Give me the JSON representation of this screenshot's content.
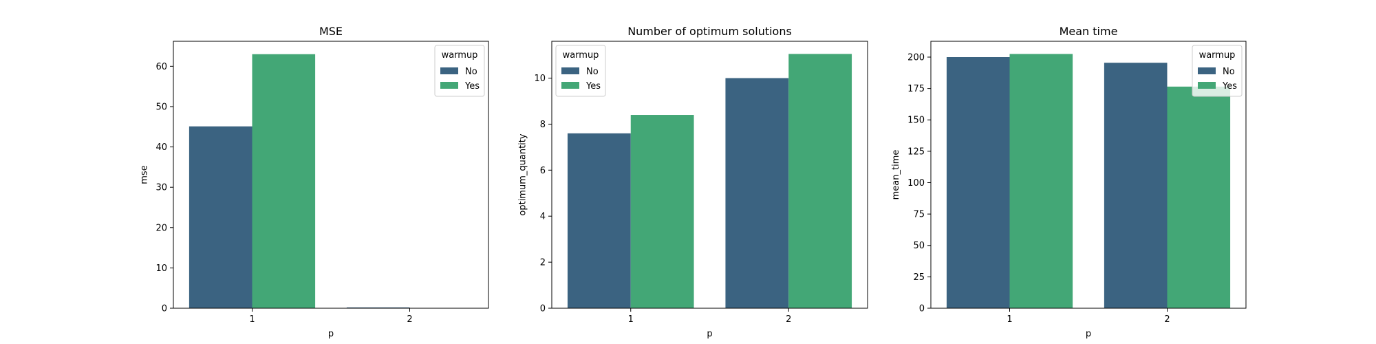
{
  "colors": {
    "no": "#3b6381",
    "yes": "#43a776",
    "axis": "#000000",
    "legend_border": "#cccccc"
  },
  "legend": {
    "title": "warmup",
    "entries": [
      "No",
      "Yes"
    ]
  },
  "chart_data": [
    {
      "type": "bar",
      "title": "MSE",
      "xlabel": "p",
      "ylabel": "mse",
      "categories": [
        "1",
        "2"
      ],
      "series": [
        {
          "name": "No",
          "values": [
            45.1,
            0.2
          ]
        },
        {
          "name": "Yes",
          "values": [
            63.0,
            0.0
          ]
        }
      ],
      "ylim": [
        0,
        66.2
      ],
      "yticks": [
        0,
        10,
        20,
        30,
        40,
        50,
        60
      ],
      "grid": false,
      "legend_position": "top-right"
    },
    {
      "type": "bar",
      "title": "Number of optimum solutions",
      "xlabel": "p",
      "ylabel": "optimum_quantity",
      "categories": [
        "1",
        "2"
      ],
      "series": [
        {
          "name": "No",
          "values": [
            7.6,
            10.0
          ]
        },
        {
          "name": "Yes",
          "values": [
            8.4,
            11.05
          ]
        }
      ],
      "ylim": [
        0,
        11.6
      ],
      "yticks": [
        0,
        2,
        4,
        6,
        8,
        10
      ],
      "grid": false,
      "legend_position": "top-left"
    },
    {
      "type": "bar",
      "title": "Mean time",
      "xlabel": "p",
      "ylabel": "mean_time",
      "categories": [
        "1",
        "2"
      ],
      "series": [
        {
          "name": "No",
          "values": [
            200.0,
            195.5
          ]
        },
        {
          "name": "Yes",
          "values": [
            202.5,
            176.5
          ]
        }
      ],
      "ylim": [
        0,
        212.6
      ],
      "yticks": [
        0,
        25,
        50,
        75,
        100,
        125,
        150,
        175,
        200
      ],
      "grid": false,
      "legend_position": "top-right"
    }
  ]
}
